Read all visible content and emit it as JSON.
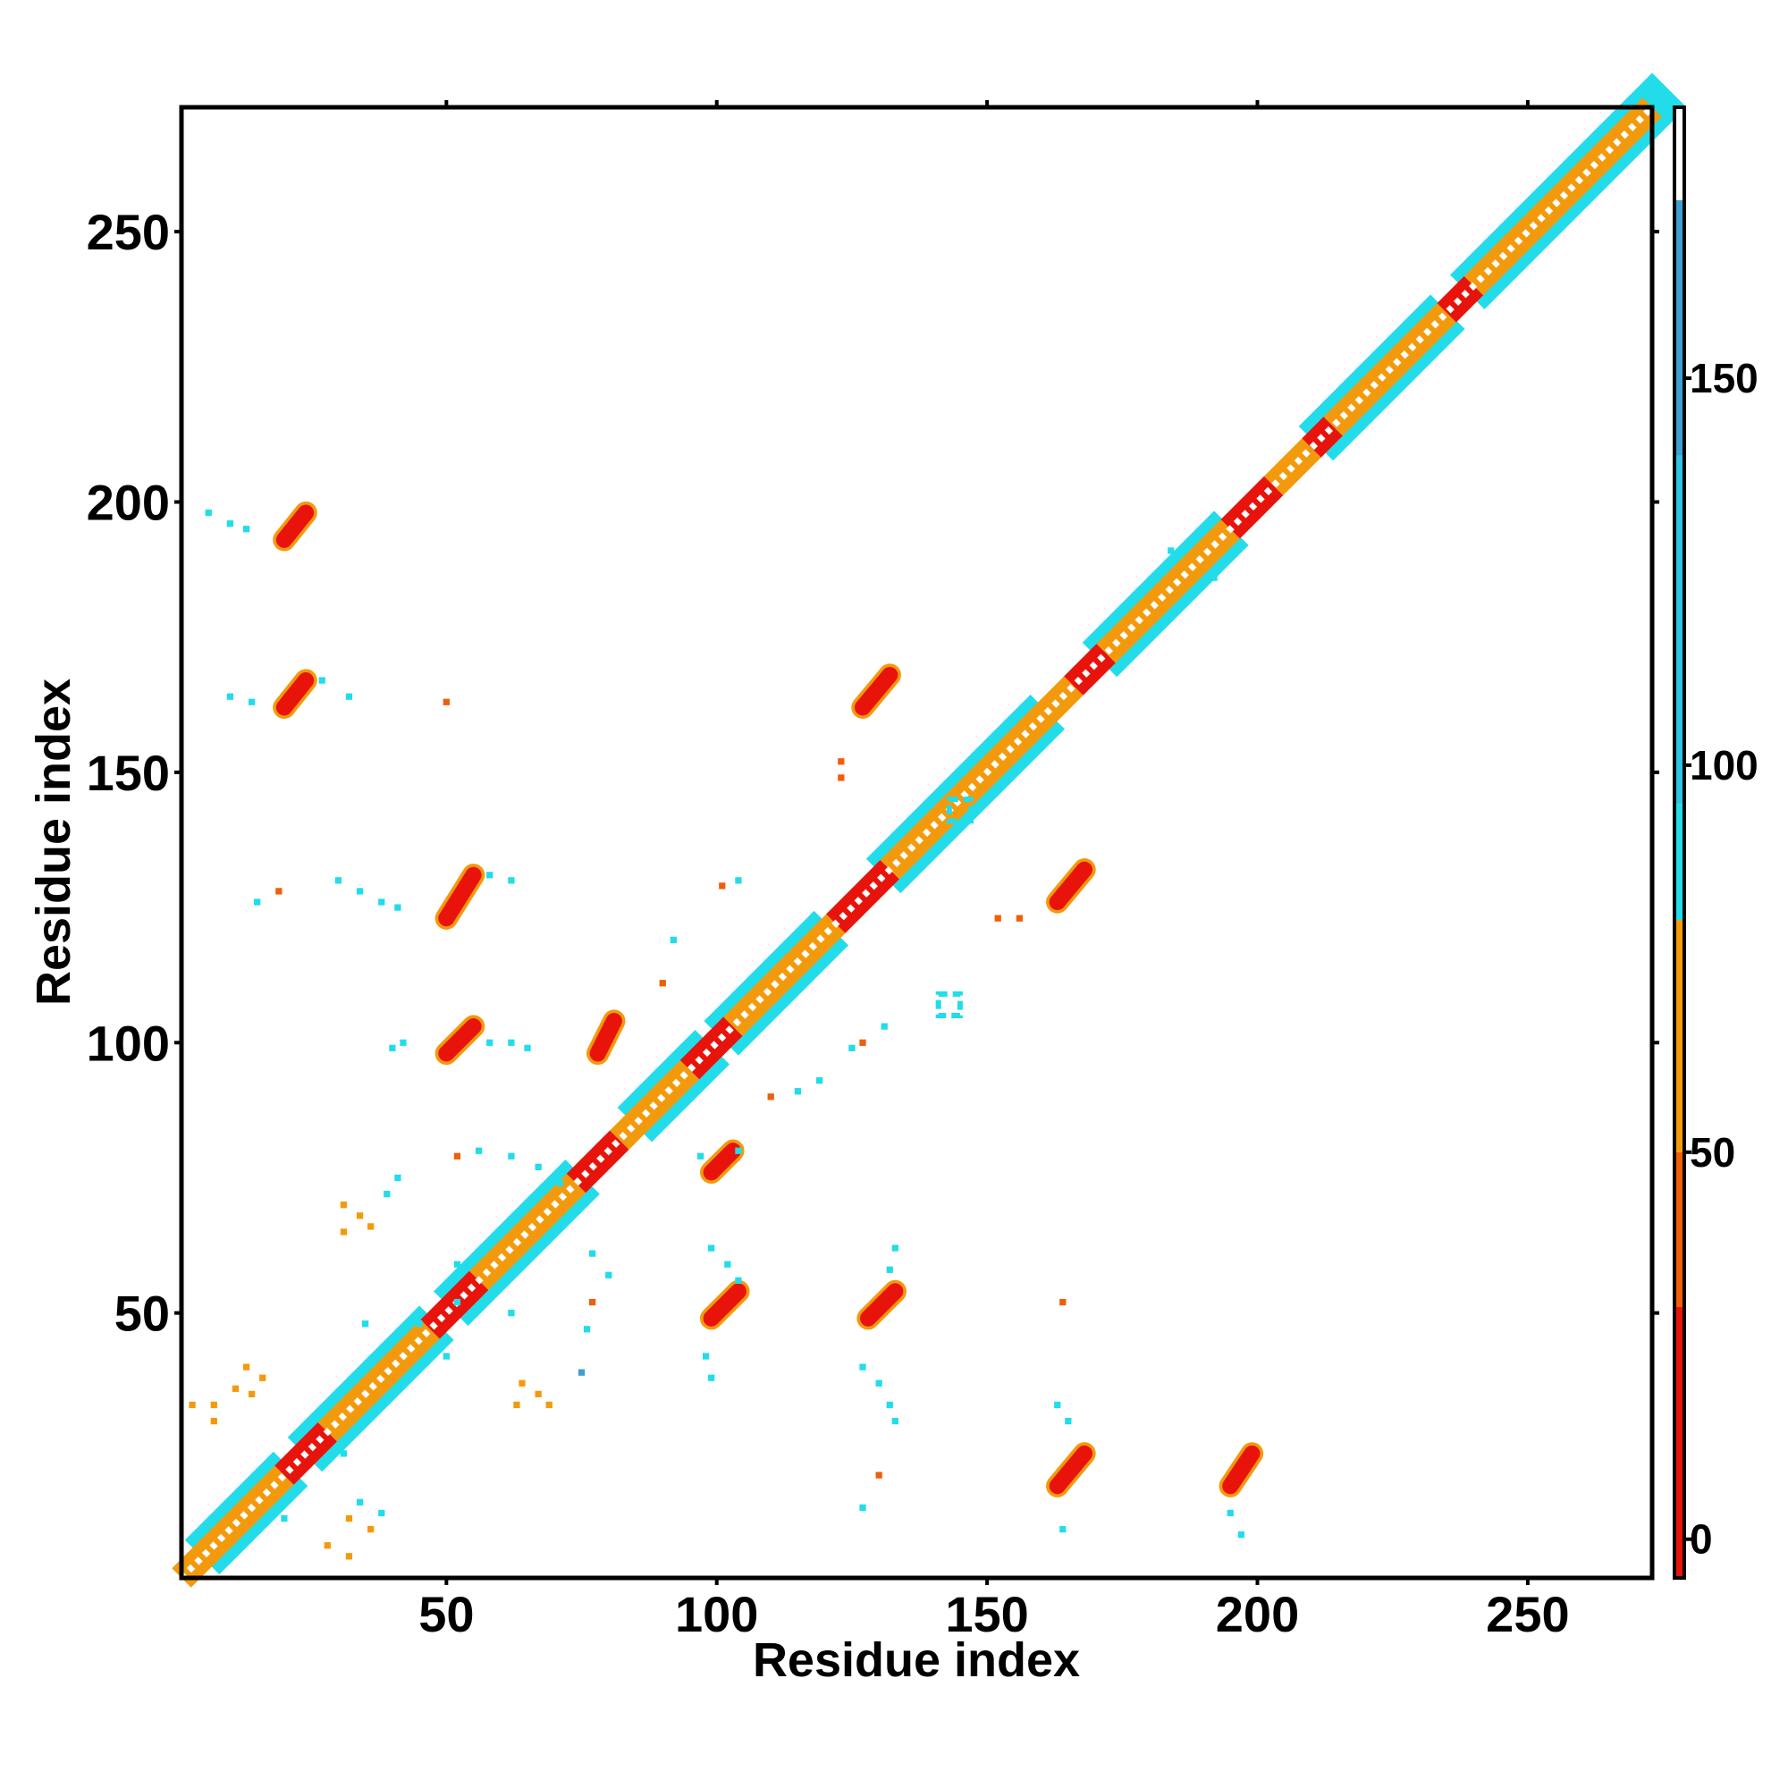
{
  "chart_data": {
    "type": "heatmap",
    "title": "",
    "xlabel": "Residue index",
    "ylabel": "Residue index",
    "xlim": [
      1,
      273
    ],
    "ylim": [
      1,
      273
    ],
    "x_ticks": [
      50,
      100,
      150,
      200,
      250
    ],
    "y_ticks": [
      50,
      100,
      150,
      200,
      250
    ],
    "grid": false,
    "colorbar": {
      "position": "right",
      "range": [
        -5,
        185
      ],
      "ticks": [
        0,
        50,
        100,
        150
      ],
      "bands": [
        {
          "from": -5,
          "to": 30,
          "color": "#e8130a"
        },
        {
          "from": 30,
          "to": 50,
          "color": "#ef5e08"
        },
        {
          "from": 50,
          "to": 80,
          "color": "#f39a0c"
        },
        {
          "from": 80,
          "to": 95,
          "color": "#22dcea"
        },
        {
          "from": 95,
          "to": 140,
          "color": "#2fc3e2"
        },
        {
          "from": 140,
          "to": 173,
          "color": "#3f9fd0"
        },
        {
          "from": 173,
          "to": 185,
          "color": "#ffffff"
        }
      ]
    },
    "diagonal": {
      "from": 1,
      "to": 273,
      "segments": [
        {
          "from": 1,
          "to": 20,
          "color": "#f39a0c"
        },
        {
          "from": 20,
          "to": 28,
          "color": "#e8130a"
        },
        {
          "from": 28,
          "to": 47,
          "color": "#f39a0c"
        },
        {
          "from": 47,
          "to": 56,
          "color": "#e8130a"
        },
        {
          "from": 56,
          "to": 74,
          "color": "#f39a0c"
        },
        {
          "from": 74,
          "to": 82,
          "color": "#e8130a"
        },
        {
          "from": 82,
          "to": 95,
          "color": "#f39a0c"
        },
        {
          "from": 95,
          "to": 103,
          "color": "#e8130a"
        },
        {
          "from": 103,
          "to": 122,
          "color": "#f39a0c"
        },
        {
          "from": 122,
          "to": 132,
          "color": "#e8130a"
        },
        {
          "from": 132,
          "to": 145,
          "color": "#f39a0c"
        },
        {
          "from": 145,
          "to": 166,
          "color": "#f39a0c"
        },
        {
          "from": 166,
          "to": 172,
          "color": "#e8130a"
        },
        {
          "from": 172,
          "to": 195,
          "color": "#f39a0c"
        },
        {
          "from": 195,
          "to": 203,
          "color": "#e8130a"
        },
        {
          "from": 203,
          "to": 210,
          "color": "#f39a0c"
        },
        {
          "from": 210,
          "to": 214,
          "color": "#e8130a"
        },
        {
          "from": 214,
          "to": 235,
          "color": "#f39a0c"
        },
        {
          "from": 235,
          "to": 240,
          "color": "#e8130a"
        },
        {
          "from": 240,
          "to": 273,
          "color": "#f39a0c"
        }
      ],
      "halo_color": "#22dcea",
      "halo_ranges": [
        [
          8,
          18
        ],
        [
          27,
          45
        ],
        [
          54,
          72
        ],
        [
          88,
          96
        ],
        [
          104,
          118
        ],
        [
          134,
          158
        ],
        [
          174,
          192
        ],
        [
          214,
          232
        ],
        [
          242,
          273
        ]
      ]
    },
    "strands": [
      {
        "x0": 20,
        "y0": 193,
        "x1": 24,
        "y1": 198,
        "color": "#e8130a"
      },
      {
        "x0": 20,
        "y0": 162,
        "x1": 24,
        "y1": 167,
        "color": "#e8130a"
      },
      {
        "x0": 50,
        "y0": 123,
        "x1": 55,
        "y1": 131,
        "color": "#e8130a"
      },
      {
        "x0": 50,
        "y0": 98,
        "x1": 55,
        "y1": 103,
        "color": "#e8130a"
      },
      {
        "x0": 78,
        "y0": 98,
        "x1": 81,
        "y1": 104,
        "color": "#e8130a"
      },
      {
        "x0": 99,
        "y0": 76,
        "x1": 103,
        "y1": 80,
        "color": "#e8130a"
      },
      {
        "x0": 99,
        "y0": 49,
        "x1": 104,
        "y1": 54,
        "color": "#e8130a"
      },
      {
        "x0": 128,
        "y0": 49,
        "x1": 133,
        "y1": 54,
        "color": "#e8130a"
      },
      {
        "x0": 127,
        "y0": 162,
        "x1": 132,
        "y1": 168,
        "color": "#e8130a"
      },
      {
        "x0": 163,
        "y0": 126,
        "x1": 168,
        "y1": 132,
        "color": "#e8130a"
      },
      {
        "x0": 163,
        "y0": 18,
        "x1": 168,
        "y1": 24,
        "color": "#e8130a"
      },
      {
        "x0": 195,
        "y0": 18,
        "x1": 199,
        "y1": 24,
        "color": "#e8130a"
      }
    ],
    "scatter_points": [
      {
        "x": 6,
        "y": 198,
        "v": 90
      },
      {
        "x": 10,
        "y": 196,
        "v": 90
      },
      {
        "x": 13,
        "y": 195,
        "v": 90
      },
      {
        "x": 10,
        "y": 164,
        "v": 90
      },
      {
        "x": 14,
        "y": 163,
        "v": 90
      },
      {
        "x": 27,
        "y": 167,
        "v": 90
      },
      {
        "x": 32,
        "y": 164,
        "v": 90
      },
      {
        "x": 50,
        "y": 163,
        "v": 35
      },
      {
        "x": 15,
        "y": 126,
        "v": 90
      },
      {
        "x": 19,
        "y": 128,
        "v": 35
      },
      {
        "x": 30,
        "y": 130,
        "v": 90
      },
      {
        "x": 34,
        "y": 128,
        "v": 90
      },
      {
        "x": 38,
        "y": 126,
        "v": 90
      },
      {
        "x": 41,
        "y": 125,
        "v": 90
      },
      {
        "x": 58,
        "y": 131,
        "v": 90
      },
      {
        "x": 62,
        "y": 130,
        "v": 90
      },
      {
        "x": 40,
        "y": 99,
        "v": 90
      },
      {
        "x": 42,
        "y": 100,
        "v": 90
      },
      {
        "x": 58,
        "y": 100,
        "v": 90
      },
      {
        "x": 62,
        "y": 100,
        "v": 90
      },
      {
        "x": 65,
        "y": 99,
        "v": 90
      },
      {
        "x": 52,
        "y": 79,
        "v": 35
      },
      {
        "x": 56,
        "y": 80,
        "v": 90
      },
      {
        "x": 62,
        "y": 79,
        "v": 90
      },
      {
        "x": 67,
        "y": 77,
        "v": 90
      },
      {
        "x": 71,
        "y": 74,
        "v": 90
      },
      {
        "x": 41,
        "y": 75,
        "v": 90
      },
      {
        "x": 39,
        "y": 72,
        "v": 90
      },
      {
        "x": 31,
        "y": 70,
        "v": 60
      },
      {
        "x": 34,
        "y": 68,
        "v": 60
      },
      {
        "x": 36,
        "y": 66,
        "v": 60
      },
      {
        "x": 31,
        "y": 65,
        "v": 60
      },
      {
        "x": 52,
        "y": 59,
        "v": 90
      },
      {
        "x": 52,
        "y": 52,
        "v": 90
      },
      {
        "x": 57,
        "y": 52,
        "v": 90
      },
      {
        "x": 62,
        "y": 50,
        "v": 90
      },
      {
        "x": 77,
        "y": 61,
        "v": 90
      },
      {
        "x": 80,
        "y": 57,
        "v": 90
      },
      {
        "x": 77,
        "y": 52,
        "v": 35
      },
      {
        "x": 76,
        "y": 47,
        "v": 90
      },
      {
        "x": 35,
        "y": 48,
        "v": 90
      },
      {
        "x": 45,
        "y": 48,
        "v": 90
      },
      {
        "x": 50,
        "y": 42,
        "v": 90
      },
      {
        "x": 13,
        "y": 40,
        "v": 60
      },
      {
        "x": 16,
        "y": 38,
        "v": 60
      },
      {
        "x": 11,
        "y": 36,
        "v": 60
      },
      {
        "x": 14,
        "y": 35,
        "v": 60
      },
      {
        "x": 3,
        "y": 33,
        "v": 60
      },
      {
        "x": 7,
        "y": 33,
        "v": 60
      },
      {
        "x": 7,
        "y": 30,
        "v": 60
      },
      {
        "x": 64,
        "y": 37,
        "v": 60
      },
      {
        "x": 67,
        "y": 35,
        "v": 60
      },
      {
        "x": 63,
        "y": 33,
        "v": 60
      },
      {
        "x": 69,
        "y": 33,
        "v": 60
      },
      {
        "x": 75,
        "y": 39,
        "v": 140
      },
      {
        "x": 34,
        "y": 15,
        "v": 90
      },
      {
        "x": 38,
        "y": 13,
        "v": 90
      },
      {
        "x": 32,
        "y": 12,
        "v": 60
      },
      {
        "x": 36,
        "y": 10,
        "v": 60
      },
      {
        "x": 28,
        "y": 7,
        "v": 60
      },
      {
        "x": 32,
        "y": 5,
        "v": 60
      },
      {
        "x": 31,
        "y": 24,
        "v": 90
      },
      {
        "x": 20,
        "y": 12,
        "v": 90
      },
      {
        "x": 97,
        "y": 79,
        "v": 90
      },
      {
        "x": 104,
        "y": 80,
        "v": 90
      },
      {
        "x": 99,
        "y": 62,
        "v": 90
      },
      {
        "x": 102,
        "y": 59,
        "v": 90
      },
      {
        "x": 104,
        "y": 56,
        "v": 90
      },
      {
        "x": 98,
        "y": 42,
        "v": 90
      },
      {
        "x": 99,
        "y": 38,
        "v": 90
      },
      {
        "x": 101,
        "y": 129,
        "v": 35
      },
      {
        "x": 104,
        "y": 130,
        "v": 90
      },
      {
        "x": 92,
        "y": 119,
        "v": 90
      },
      {
        "x": 90,
        "y": 111,
        "v": 35
      },
      {
        "x": 127,
        "y": 100,
        "v": 35
      },
      {
        "x": 131,
        "y": 103,
        "v": 90
      },
      {
        "x": 125,
        "y": 99,
        "v": 90
      },
      {
        "x": 119,
        "y": 93,
        "v": 90
      },
      {
        "x": 115,
        "y": 91,
        "v": 90
      },
      {
        "x": 110,
        "y": 90,
        "v": 35
      },
      {
        "x": 123,
        "y": 152,
        "v": 35
      },
      {
        "x": 123,
        "y": 149,
        "v": 35
      },
      {
        "x": 152,
        "y": 123,
        "v": 35
      },
      {
        "x": 156,
        "y": 123,
        "v": 35
      },
      {
        "x": 133,
        "y": 62,
        "v": 90
      },
      {
        "x": 132,
        "y": 58,
        "v": 90
      },
      {
        "x": 127,
        "y": 40,
        "v": 90
      },
      {
        "x": 130,
        "y": 37,
        "v": 90
      },
      {
        "x": 132,
        "y": 33,
        "v": 90
      },
      {
        "x": 133,
        "y": 30,
        "v": 90
      },
      {
        "x": 130,
        "y": 20,
        "v": 35
      },
      {
        "x": 127,
        "y": 14,
        "v": 90
      },
      {
        "x": 164,
        "y": 52,
        "v": 35
      },
      {
        "x": 163,
        "y": 33,
        "v": 90
      },
      {
        "x": 165,
        "y": 30,
        "v": 90
      },
      {
        "x": 164,
        "y": 10,
        "v": 90
      },
      {
        "x": 195,
        "y": 13,
        "v": 90
      },
      {
        "x": 197,
        "y": 9,
        "v": 90
      },
      {
        "x": 192,
        "y": 186,
        "v": 90
      },
      {
        "x": 184,
        "y": 191,
        "v": 90
      }
    ],
    "square_markers": [
      {
        "x": 145,
        "y": 143,
        "size": 4,
        "color": "#22dcea"
      },
      {
        "x": 143,
        "y": 107,
        "size": 4,
        "color": "#22dcea"
      }
    ]
  }
}
